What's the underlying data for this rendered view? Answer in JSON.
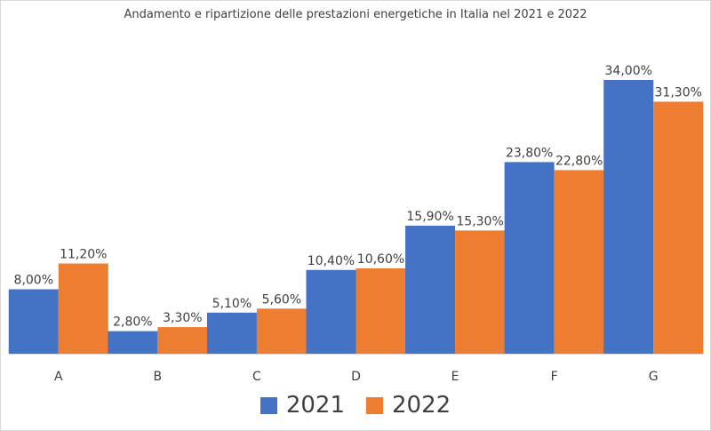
{
  "chart_data": {
    "type": "bar",
    "title": "Andamento e ripartizione delle prestazioni energetiche in Italia nel 2021 e 2022",
    "categories": [
      "A",
      "B",
      "C",
      "D",
      "E",
      "F",
      "G"
    ],
    "series": [
      {
        "name": "2021",
        "color": "#4472c4",
        "values": [
          8.0,
          2.8,
          5.1,
          10.4,
          15.9,
          23.8,
          34.0
        ],
        "labels": [
          "8,00%",
          "2,80%",
          "5,10%",
          "10,40%",
          "15,90%",
          "23,80%",
          "34,00%"
        ]
      },
      {
        "name": "2022",
        "color": "#ed7d31",
        "values": [
          11.2,
          3.3,
          5.6,
          10.6,
          15.3,
          22.8,
          31.3
        ],
        "labels": [
          "11,20%",
          "3,30%",
          "5,60%",
          "10,60%",
          "15,30%",
          "22,80%",
          "31,30%"
        ]
      }
    ],
    "xlabel": "",
    "ylabel": "",
    "ylim": [
      0,
      40
    ],
    "grid": false,
    "legend_position": "bottom"
  }
}
